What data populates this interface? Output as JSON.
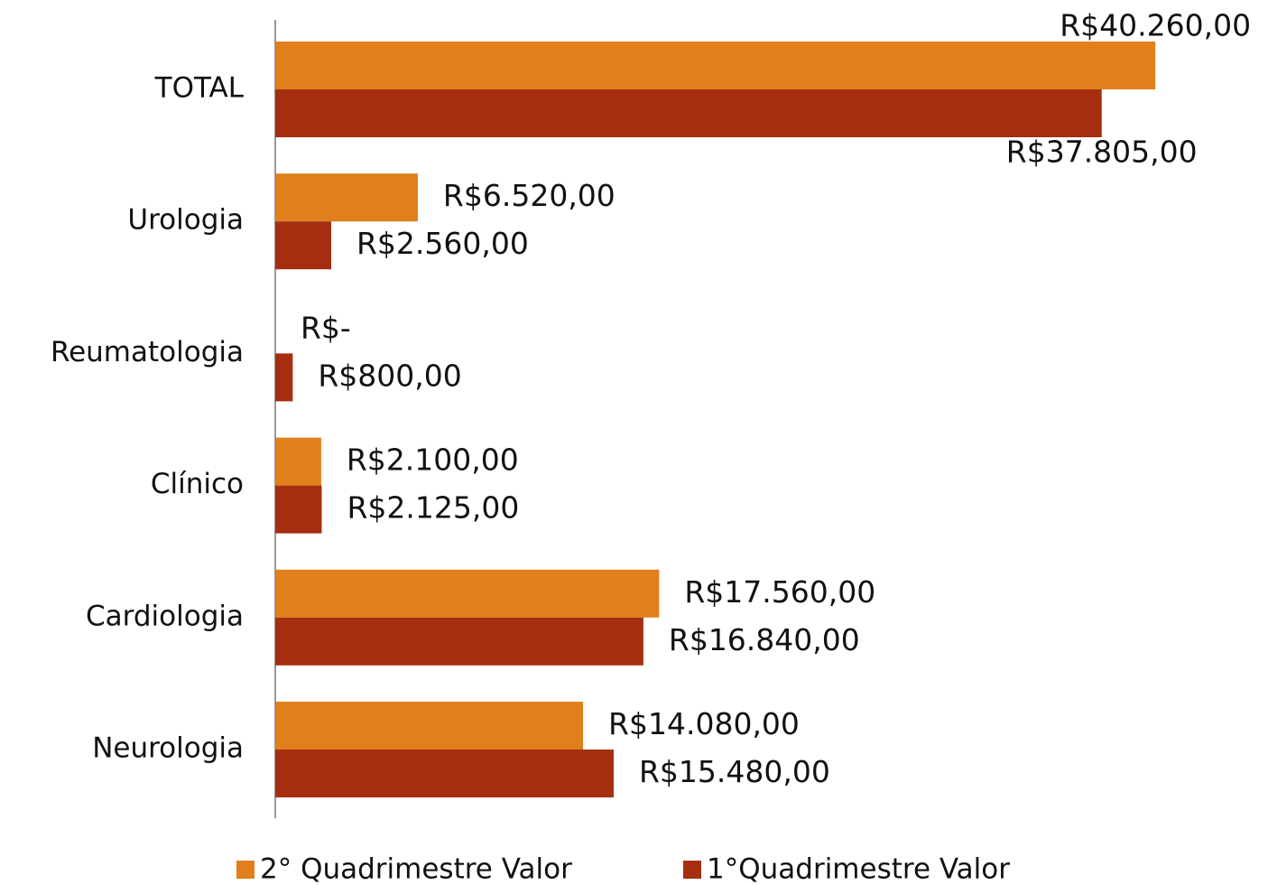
{
  "chart_data": {
    "type": "hbar",
    "categories": [
      "TOTAL",
      "Urologia",
      "Reumatologia",
      "Clínico",
      "Cardiologia",
      "Neurologia"
    ],
    "series": [
      {
        "name": "2° Quadrimestre Valor",
        "color": "#E07F1B",
        "values": [
          40260,
          6520,
          0,
          2100,
          17560,
          14080
        ],
        "value_labels": [
          "R$40.260,00",
          "R$6.520,00",
          "R$-",
          "R$2.100,00",
          "R$17.560,00",
          "R$14.080,00"
        ]
      },
      {
        "name": "1°Quadrimestre Valor",
        "color": "#A52E10",
        "values": [
          37805,
          2560,
          800,
          2125,
          16840,
          15480
        ],
        "value_labels": [
          "R$37.805,00",
          "R$2.560,00",
          "R$800,00",
          "R$2.125,00",
          "R$16.840,00",
          "R$15.480,00"
        ]
      }
    ],
    "xlim": [
      0,
      45000
    ],
    "legend": "bottom"
  }
}
